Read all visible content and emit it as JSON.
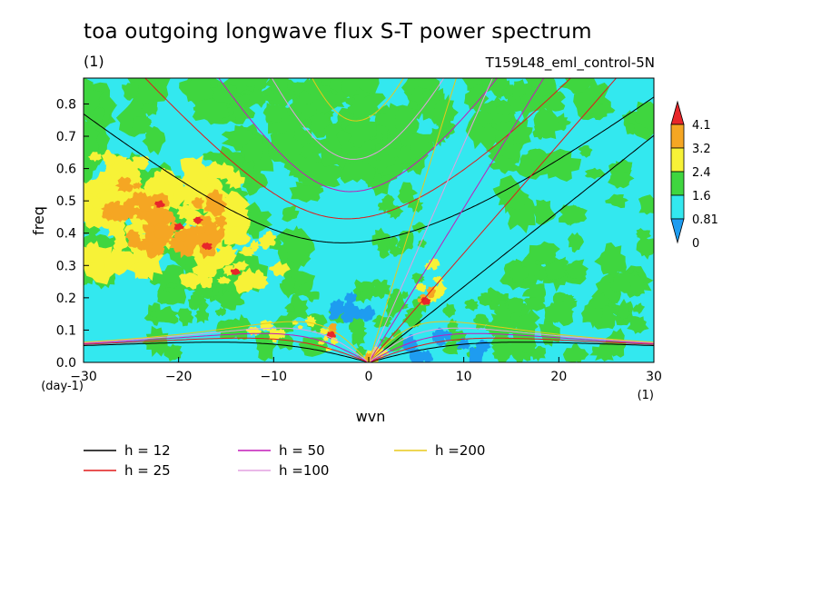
{
  "title": "toa outgoing longwave flux S-T power spectrum",
  "units_label": "(1)",
  "experiment": "T159L48_eml_control-5N",
  "chart_data": {
    "type": "heatmap",
    "xlabel": "wvn",
    "ylabel": "freq",
    "x_units": "(1)",
    "y_units": "(day-1)",
    "xlim": [
      -30,
      30
    ],
    "ylim": [
      0,
      0.88
    ],
    "x_ticks": [
      -30,
      -20,
      -10,
      0,
      10,
      20,
      30
    ],
    "y_ticks": [
      0.0,
      0.1,
      0.2,
      0.3,
      0.4,
      0.5,
      0.6,
      0.7,
      0.8
    ],
    "colorbar": {
      "levels": [
        "4.1",
        "3.2",
        "2.4",
        "1.6",
        "0.81",
        "0"
      ],
      "colors": [
        "#e8262a",
        "#f5a623",
        "#f7f237",
        "#3fd63f",
        "#33e8ef",
        "#1e9cf0"
      ]
    },
    "equivalent_depth_curves": [
      {
        "label": "h = 12",
        "h": 12,
        "color": "#000000"
      },
      {
        "label": "h = 25",
        "h": 25,
        "color": "#e01a1a"
      },
      {
        "label": "h = 50",
        "h": 50,
        "color": "#c41ab8"
      },
      {
        "label": "h =100",
        "h": 100,
        "color": "#e3a0e0"
      },
      {
        "label": "h =200",
        "h": 200,
        "color": "#e8c81a"
      }
    ]
  }
}
